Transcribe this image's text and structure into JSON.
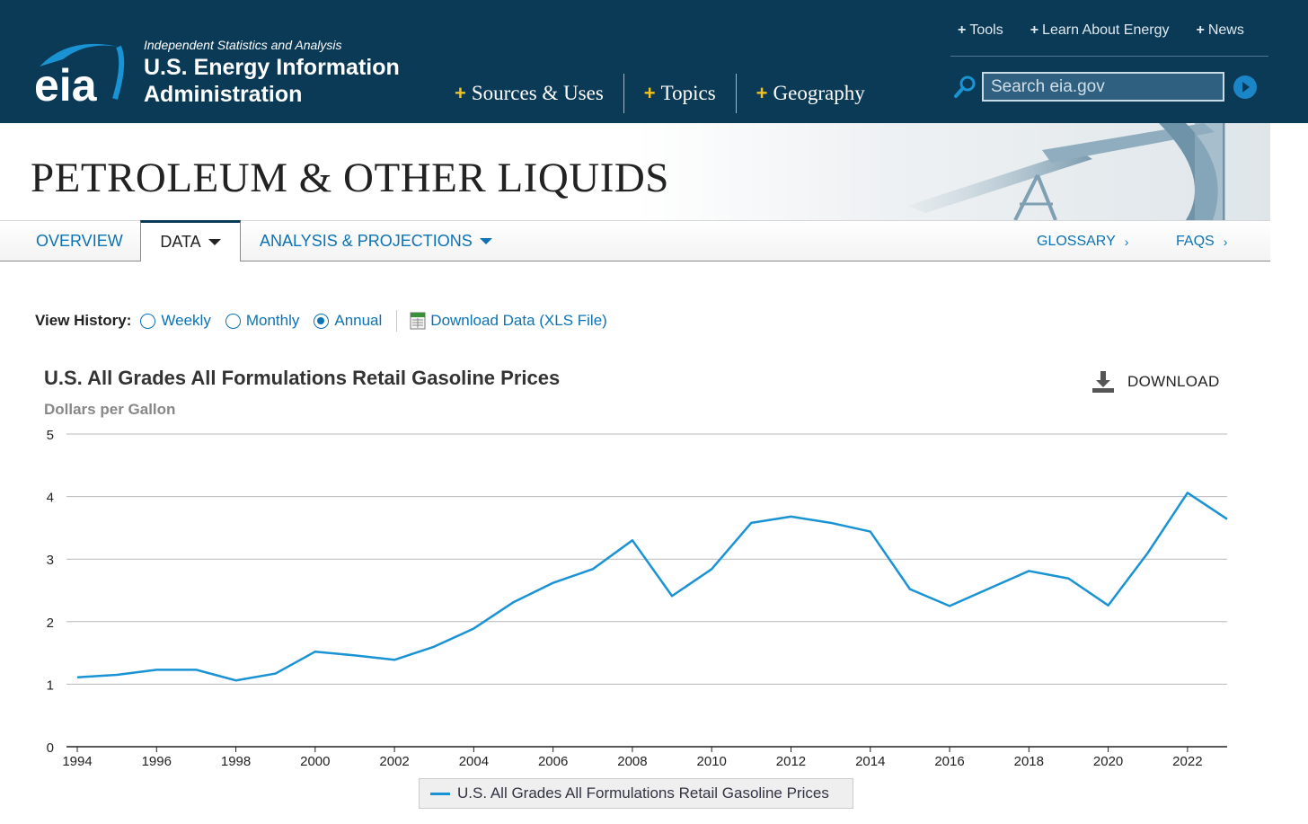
{
  "header": {
    "tagline": "Independent Statistics and Analysis",
    "org_line1": "U.S. Energy Information",
    "org_line2": "Administration",
    "logo_text": "eia",
    "main_nav": [
      {
        "label": "Sources & Uses"
      },
      {
        "label": "Topics"
      },
      {
        "label": "Geography"
      }
    ],
    "util_nav": [
      {
        "label": "Tools"
      },
      {
        "label": "Learn About Energy"
      },
      {
        "label": "News"
      }
    ],
    "search": {
      "placeholder": "Search eia.gov"
    }
  },
  "banner": {
    "title": "PETROLEUM & OTHER LIQUIDS"
  },
  "tabs": {
    "overview": "OVERVIEW",
    "data": "DATA",
    "analysis": "ANALYSIS & PROJECTIONS",
    "glossary": "GLOSSARY",
    "faqs": "FAQS",
    "chevron": "›"
  },
  "history": {
    "label": "View History:",
    "options": [
      {
        "label": "Weekly",
        "checked": false
      },
      {
        "label": "Monthly",
        "checked": false
      },
      {
        "label": "Annual",
        "checked": true
      }
    ],
    "download_link": "Download Data (XLS File)"
  },
  "chart_section": {
    "download_label": "DOWNLOAD"
  },
  "colors": {
    "header_bg": "#0b3a57",
    "accent_yellow": "#f2c21a",
    "link_blue": "#0b73b5",
    "series_blue": "#1a93d4"
  },
  "chart_data": {
    "type": "line",
    "title": "U.S. All Grades All Formulations Retail Gasoline Prices",
    "ylabel": "Dollars per Gallon",
    "xlabel": "",
    "ylim": [
      0,
      5
    ],
    "yticks": [
      0,
      1,
      2,
      3,
      4,
      5
    ],
    "xticks": [
      1994,
      1996,
      1998,
      2000,
      2002,
      2004,
      2006,
      2008,
      2010,
      2012,
      2014,
      2016,
      2018,
      2020,
      2022
    ],
    "xlim": [
      1994,
      2023
    ],
    "grid": true,
    "legend_position": "bottom-center",
    "x": [
      1994,
      1995,
      1996,
      1997,
      1998,
      1999,
      2000,
      2001,
      2002,
      2003,
      2004,
      2005,
      2006,
      2007,
      2008,
      2009,
      2010,
      2011,
      2012,
      2013,
      2014,
      2015,
      2016,
      2017,
      2018,
      2019,
      2020,
      2021,
      2022,
      2023
    ],
    "series": [
      {
        "name": "U.S. All Grades All Formulations Retail Gasoline Prices",
        "values": [
          1.11,
          1.15,
          1.23,
          1.23,
          1.06,
          1.17,
          1.52,
          1.46,
          1.39,
          1.6,
          1.89,
          2.31,
          2.62,
          2.84,
          3.3,
          2.41,
          2.84,
          3.58,
          3.68,
          3.58,
          3.44,
          2.52,
          2.25,
          2.53,
          2.81,
          2.69,
          2.26,
          3.1,
          4.06,
          3.64
        ],
        "color": "#1a93d4"
      }
    ]
  }
}
